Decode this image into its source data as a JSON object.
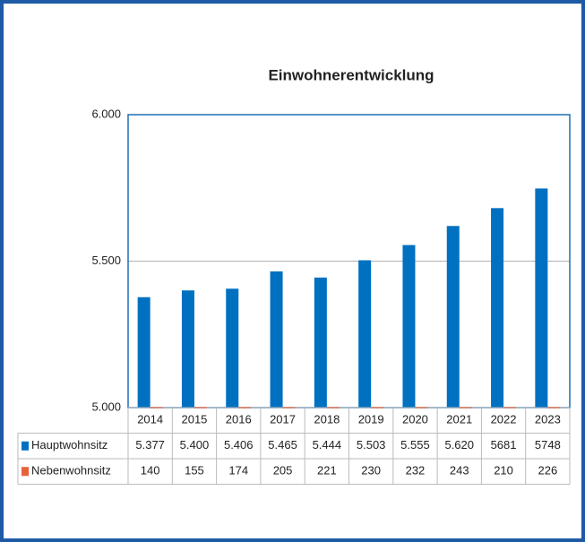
{
  "chart_data": {
    "type": "bar",
    "title": "Einwohnerentwicklung",
    "categories": [
      "2014",
      "2015",
      "2016",
      "2017",
      "2018",
      "2019",
      "2020",
      "2021",
      "2022",
      "2023"
    ],
    "series": [
      {
        "name": "Hauptwohnsitz",
        "color": "#0070c0",
        "values": [
          5377,
          5400,
          5406,
          5465,
          5444,
          5503,
          5555,
          5620,
          5681,
          5748
        ],
        "value_labels": [
          "5.377",
          "5.400",
          "5.406",
          "5.465",
          "5.444",
          "5.503",
          "5.555",
          "5.620",
          "5681",
          "5748"
        ]
      },
      {
        "name": "Nebenwohnsitz",
        "color": "#e8603c",
        "values": [
          140,
          155,
          174,
          205,
          221,
          230,
          232,
          243,
          210,
          226
        ]
      }
    ],
    "ylim": [
      5000,
      6000
    ],
    "yticks": [
      {
        "value": 5000,
        "label": "5.000"
      },
      {
        "value": 5500,
        "label": "5.500"
      },
      {
        "value": 6000,
        "label": "6.000"
      }
    ],
    "grid": true
  }
}
